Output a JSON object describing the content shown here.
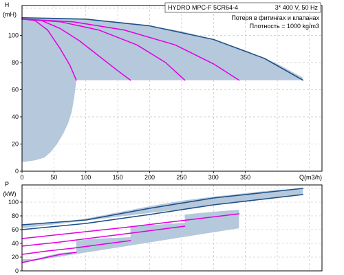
{
  "header": {
    "pump": "HYDRO MPC-F 5CR64-4",
    "supply": "3* 400 V, 50 Hz",
    "note_losses": "Потеря в фитингах и клапанах",
    "note_density": "Плотность = 1000 kg/m3"
  },
  "colors": {
    "envelope_fill": "#b5c8dc",
    "max_curve": "#1e4f86",
    "pump_curves": "#e000e0",
    "grid": "#bdbdbd"
  },
  "chart_data": [
    {
      "type": "line",
      "id": "head",
      "ylabel_line1": "H",
      "ylabel_line2": "(mH)",
      "xlabel": "Q(m3/h)",
      "xlim": [
        0,
        470
      ],
      "ylim": [
        0,
        122
      ],
      "xticks": [
        0,
        50,
        100,
        150,
        200,
        250,
        300,
        350
      ],
      "yticks": [
        0,
        20,
        40,
        60,
        80,
        100
      ],
      "grid": true,
      "envelope_upper": [
        [
          0,
          113
        ],
        [
          50,
          113
        ],
        [
          100,
          112
        ],
        [
          150,
          110
        ],
        [
          200,
          107
        ],
        [
          250,
          103
        ],
        [
          300,
          97
        ],
        [
          350,
          89
        ],
        [
          400,
          79
        ],
        [
          440,
          69
        ],
        [
          440,
          67
        ],
        [
          0,
          67
        ]
      ],
      "envelope_lower": [
        [
          0,
          67
        ],
        [
          85,
          67
        ],
        [
          82,
          55
        ],
        [
          78,
          44
        ],
        [
          72,
          35
        ],
        [
          65,
          28
        ],
        [
          55,
          20
        ],
        [
          45,
          14
        ],
        [
          35,
          10
        ],
        [
          20,
          8
        ],
        [
          5,
          7
        ],
        [
          0,
          7
        ]
      ],
      "series": [
        {
          "values": [
            [
              0,
              112
            ],
            [
              20,
              111
            ],
            [
              40,
              104
            ],
            [
              60,
              90
            ],
            [
              75,
              78
            ],
            [
              85,
              67
            ]
          ]
        },
        {
          "values": [
            [
              0,
              112
            ],
            [
              30,
              111
            ],
            [
              60,
              105
            ],
            [
              90,
              96
            ],
            [
              120,
              85
            ],
            [
              150,
              74
            ],
            [
              170,
              67
            ]
          ]
        },
        {
          "values": [
            [
              0,
              112
            ],
            [
              60,
              110
            ],
            [
              120,
              104
            ],
            [
              180,
              93
            ],
            [
              225,
              80
            ],
            [
              255,
              67
            ]
          ]
        },
        {
          "values": [
            [
              0,
              112
            ],
            [
              80,
              110
            ],
            [
              160,
              104
            ],
            [
              240,
              93
            ],
            [
              300,
              79
            ],
            [
              340,
              67
            ]
          ]
        },
        {
          "values": [
            [
              0,
              113
            ],
            [
              100,
              112
            ],
            [
              200,
              107
            ],
            [
              300,
              97
            ],
            [
              380,
              83
            ],
            [
              440,
              67
            ]
          ],
          "max": true
        }
      ]
    },
    {
      "type": "line",
      "id": "power",
      "ylabel_line1": "P",
      "ylabel_line2": "(kW)",
      "xlim": [
        0,
        470
      ],
      "ylim": [
        0,
        125
      ],
      "yticks": [
        0,
        20,
        40,
        60,
        80,
        100
      ],
      "grid": true,
      "envelope_upper": [
        [
          0,
          67
        ],
        [
          50,
          70
        ],
        [
          100,
          76
        ],
        [
          150,
          85
        ],
        [
          200,
          94
        ],
        [
          250,
          102
        ],
        [
          300,
          108
        ],
        [
          350,
          113
        ],
        [
          390,
          117
        ],
        [
          440,
          120
        ],
        [
          440,
          111
        ],
        [
          0,
          62
        ]
      ],
      "envelope_lower": [
        [
          0,
          17
        ],
        [
          20,
          17
        ],
        [
          40,
          22
        ],
        [
          60,
          26
        ],
        [
          85,
          28
        ],
        [
          85,
          44
        ],
        [
          120,
          47
        ],
        [
          170,
          49
        ],
        [
          170,
          64
        ],
        [
          210,
          67
        ],
        [
          255,
          70
        ],
        [
          255,
          82
        ],
        [
          300,
          86
        ],
        [
          340,
          89
        ],
        [
          340,
          62
        ],
        [
          0,
          12
        ]
      ],
      "series": [
        {
          "values": [
            [
              0,
              12
            ],
            [
              20,
              16
            ],
            [
              40,
              20
            ],
            [
              60,
              24
            ],
            [
              85,
              27
            ]
          ]
        },
        {
          "values": [
            [
              0,
              24
            ],
            [
              40,
              29
            ],
            [
              80,
              33
            ],
            [
              120,
              38
            ],
            [
              170,
              44
            ]
          ]
        },
        {
          "values": [
            [
              0,
              36
            ],
            [
              60,
              42
            ],
            [
              120,
              49
            ],
            [
              180,
              56
            ],
            [
              255,
              65
            ]
          ]
        },
        {
          "values": [
            [
              0,
              47
            ],
            [
              80,
              55
            ],
            [
              160,
              63
            ],
            [
              250,
              73
            ],
            [
              340,
              83
            ]
          ]
        },
        {
          "values": [
            [
              0,
              60
            ],
            [
              100,
              69
            ],
            [
              200,
              82
            ],
            [
              300,
              96
            ],
            [
              440,
              111
            ]
          ],
          "max": true
        },
        {
          "values": [
            [
              0,
              67
            ],
            [
              100,
              74
            ],
            [
              200,
              91
            ],
            [
              300,
              106
            ],
            [
              440,
              120
            ]
          ],
          "max": true
        }
      ]
    }
  ]
}
